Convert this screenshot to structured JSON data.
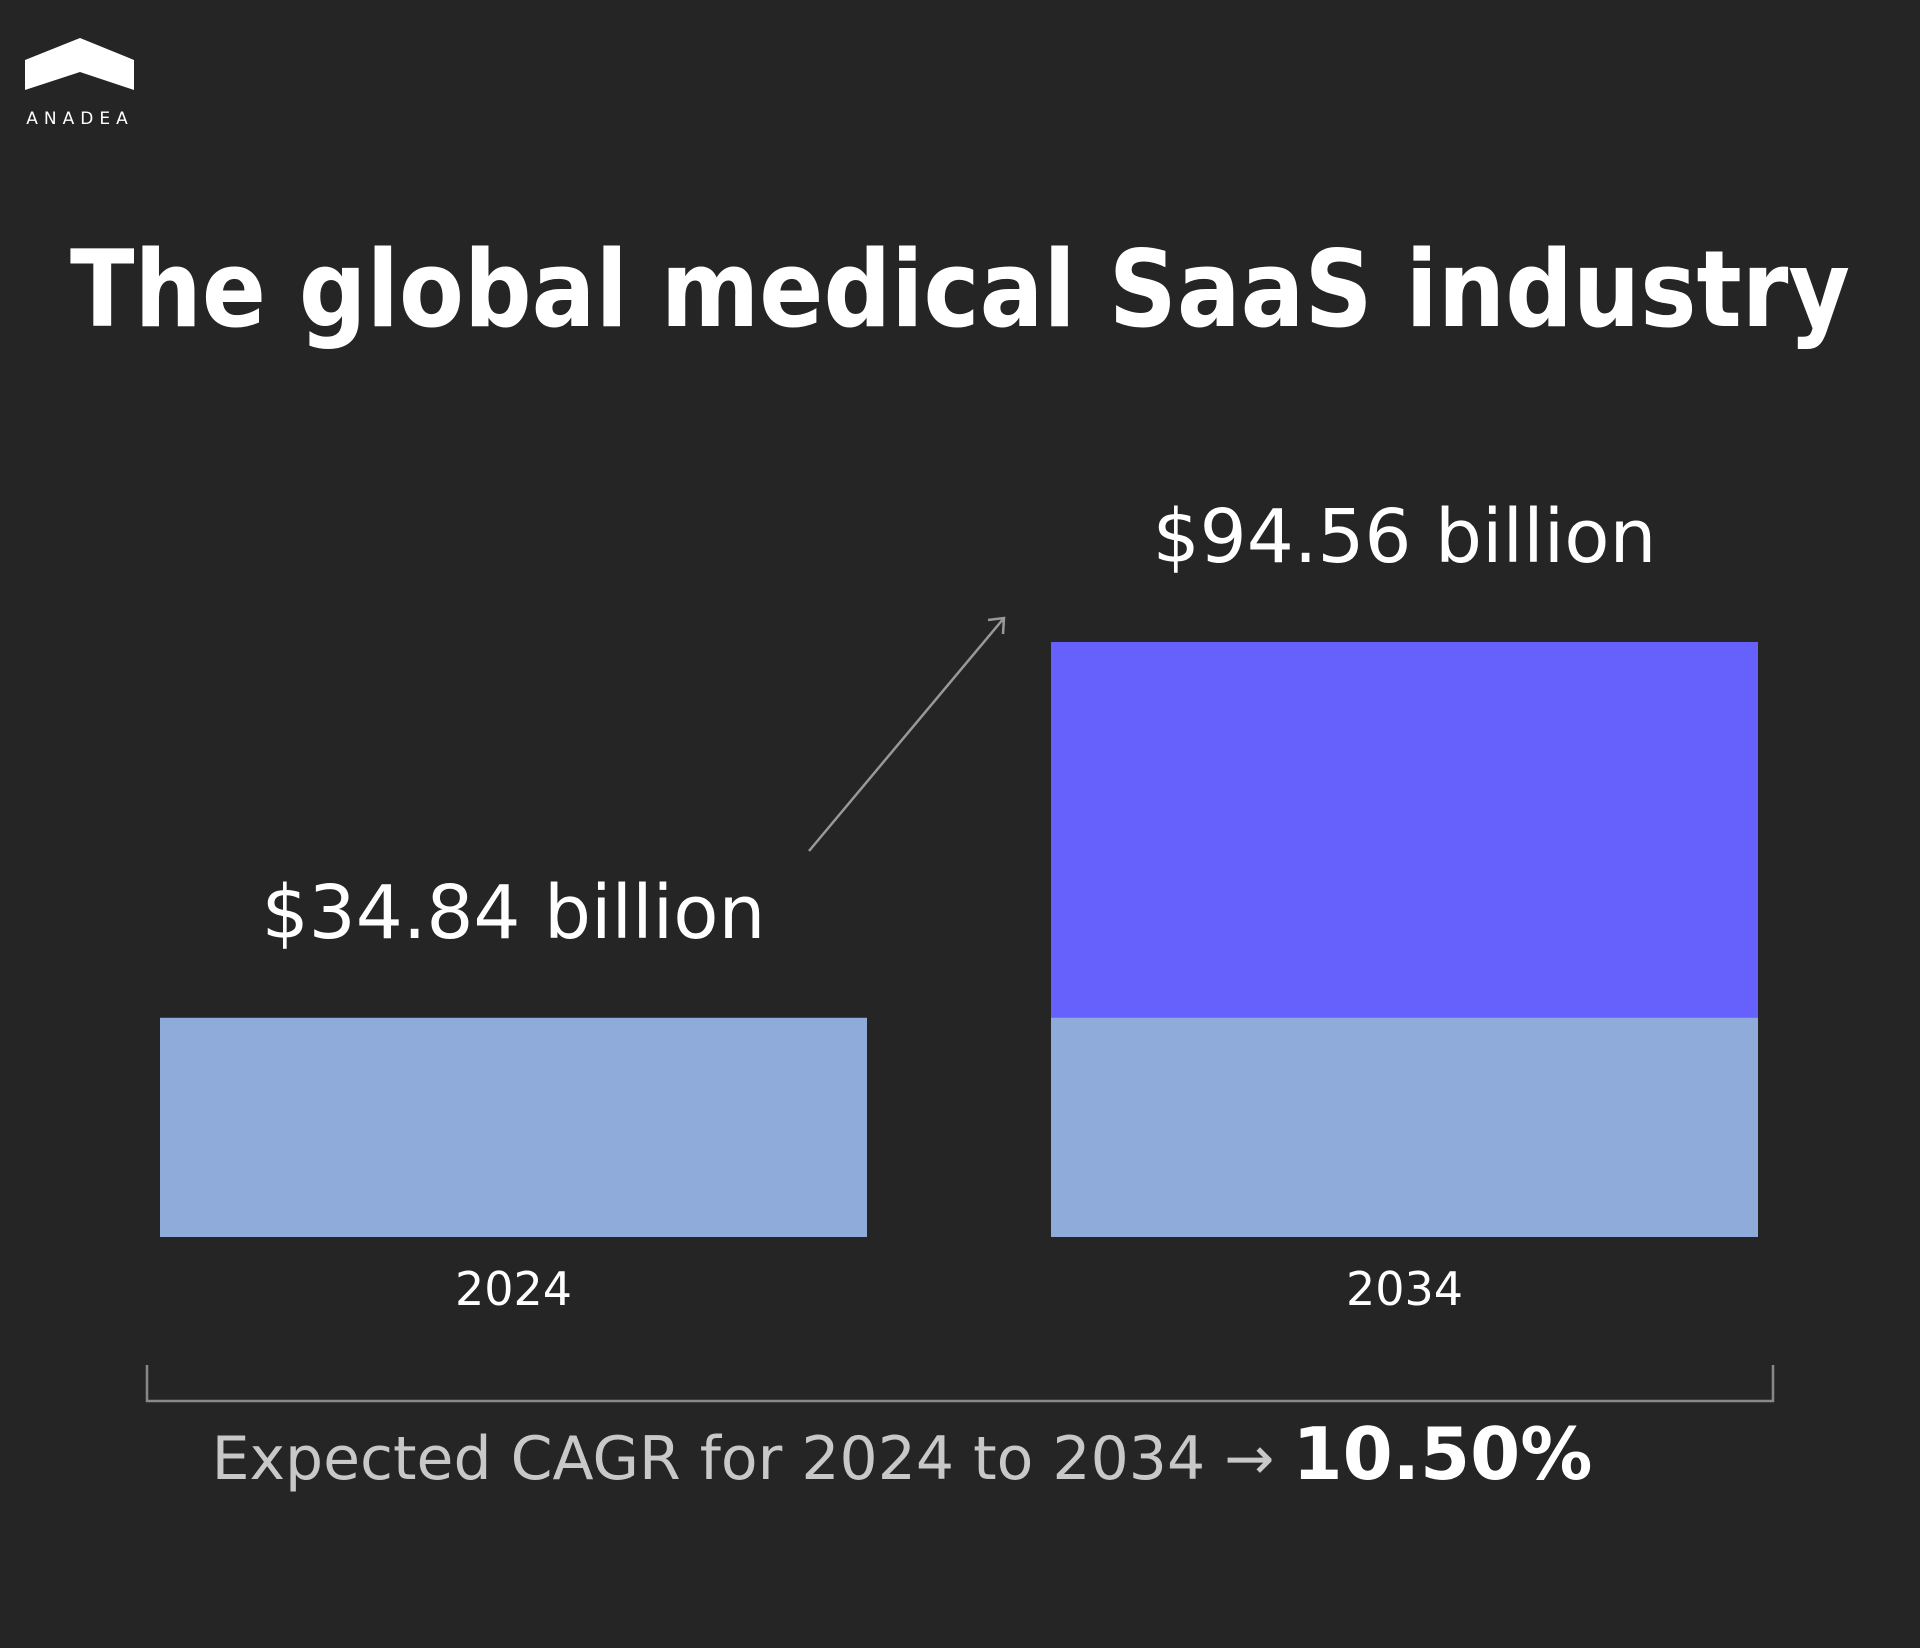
{
  "brand": "ANADEA",
  "chart_data": {
    "type": "bar",
    "title": "The global medical SaaS industry",
    "categories": [
      "2024",
      "2034"
    ],
    "values": [
      34.84,
      94.56
    ],
    "value_labels": [
      "$34.84 billion",
      "$94.56 billion"
    ],
    "colors": [
      "#8eabd9",
      "#6661fd"
    ],
    "cagr_label": "Expected CAGR for 2024 to 2034 →",
    "cagr_value": "10.50%"
  }
}
